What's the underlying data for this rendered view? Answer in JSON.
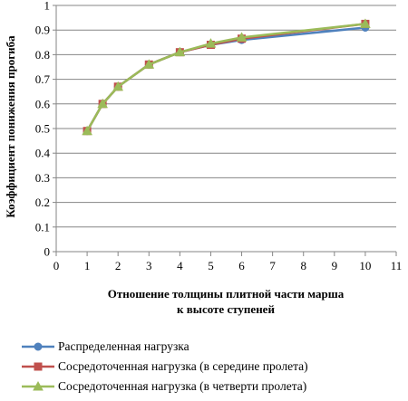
{
  "chart_data": {
    "type": "line",
    "title": "",
    "ylabel": "Коэффициент понижения прогиба",
    "xlabel_lines": [
      "Отношение толщины плитной части марша",
      "к высоте ступеней"
    ],
    "xlim": [
      0,
      11
    ],
    "ylim": [
      0,
      1
    ],
    "xticks": [
      "0",
      "1",
      "2",
      "3",
      "4",
      "5",
      "6",
      "7",
      "8",
      "9",
      "10",
      "11"
    ],
    "yticks": [
      "0",
      "0.1",
      "0.2",
      "0.3",
      "0.4",
      "0.5",
      "0.6",
      "0.7",
      "0.8",
      "0.9",
      "1"
    ],
    "grid": "horizontal",
    "legend_position": "bottom",
    "x": [
      1,
      1.5,
      2,
      3,
      4,
      5,
      6,
      10
    ],
    "series": [
      {
        "name": "Распределенная нагрузка",
        "color": "#4F81BD",
        "marker": "circle",
        "values": [
          0.49,
          0.6,
          0.67,
          0.76,
          0.81,
          0.84,
          0.86,
          0.91
        ]
      },
      {
        "name": "Сосредоточенная нагрузка (в середине пролета)",
        "color": "#C0504D",
        "marker": "square",
        "values": [
          0.49,
          0.6,
          0.67,
          0.76,
          0.81,
          0.84,
          0.865,
          0.925
        ]
      },
      {
        "name": "Сосредоточенная нагрузка (в четверти пролета)",
        "color": "#9BBB59",
        "marker": "triangle",
        "values": [
          0.49,
          0.6,
          0.67,
          0.76,
          0.81,
          0.845,
          0.87,
          0.925
        ]
      }
    ]
  }
}
